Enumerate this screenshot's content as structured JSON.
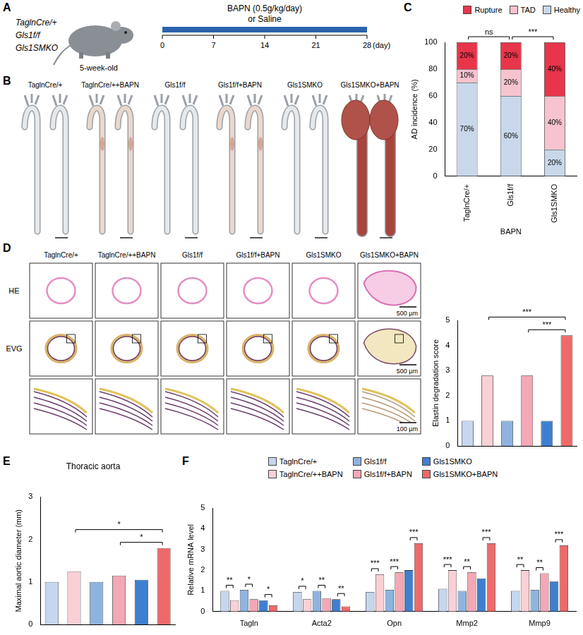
{
  "panel_letters": [
    "A",
    "B",
    "C",
    "D",
    "E",
    "F"
  ],
  "panel_a": {
    "genotypes": [
      "TaglnCre/+",
      "Gls1f/f",
      "Gls1SMKO"
    ],
    "age": "5-week-old",
    "treatment": [
      "BAPN (0.5g/kg/day)",
      "or Saline"
    ],
    "days": [
      0,
      7,
      14,
      21,
      28
    ],
    "unit": "(day)"
  },
  "panel_b": {
    "groups": [
      "TaglnCre/+",
      "TaglnCre/++BAPN",
      "Gls1f/f",
      "Gls1f/f+BAPN",
      "Gls1SMKO",
      "Gls1SMKO+BAPN"
    ]
  },
  "panel_d_images": {
    "groups": [
      "TaglnCre/+",
      "TaglnCre/++BAPN",
      "Gls1f/f",
      "Gls1f/f+BAPN",
      "Gls1SMKO",
      "Gls1SMKO+BAPN"
    ],
    "rows": [
      "HE",
      "EVG"
    ],
    "scale_bars": [
      "500 µm",
      "500 µm",
      "100 µm"
    ]
  },
  "chart_data": [
    {
      "type": "bar",
      "stacked": true,
      "data_labels": true,
      "legend": "top",
      "grid": false,
      "categories": [
        "TaglnCre/+",
        "Gls1f/f",
        "Gls1SMKO"
      ],
      "xlabel": "BAPN",
      "ylabel": "AD incidence (%)",
      "ylim": [
        0,
        100
      ],
      "yticks": [
        0,
        20,
        40,
        60,
        80,
        100
      ],
      "series": [
        {
          "name": "Healthy",
          "color": "#c8d8ea",
          "values": [
            70,
            60,
            20
          ],
          "value_labels": [
            "70%",
            "60%",
            "20%"
          ]
        },
        {
          "name": "TAD",
          "color": "#f6c3cf",
          "values": [
            10,
            20,
            40
          ],
          "value_labels": [
            "10%",
            "20%",
            "40%"
          ]
        },
        {
          "name": "Rupture",
          "color": "#e8354a",
          "values": [
            20,
            20,
            40
          ],
          "value_labels": [
            "20%",
            "20%",
            "40%"
          ]
        }
      ],
      "annotations": [
        {
          "from": "TaglnCre/+",
          "to": "Gls1f/f",
          "text": "ns"
        },
        {
          "from": "Gls1f/f",
          "to": "Gls1SMKO",
          "text": "***"
        }
      ]
    },
    {
      "type": "bar",
      "tick_labels": "y",
      "grid": false,
      "categories": [
        "TaglnCre/+",
        "TaglnCre/++BAPN",
        "Gls1f/f",
        "Gls1f/f+BAPN",
        "Gls1SMKO",
        "Gls1SMKO+BAPN"
      ],
      "values": [
        1.0,
        2.8,
        1.0,
        2.8,
        1.0,
        4.4
      ],
      "colors": [
        "#c5d6ee",
        "#f9d0d6",
        "#8fb3e0",
        "#f4a7b5",
        "#3f7fcf",
        "#ee6a6a"
      ],
      "ylabel": "Elastin degradation score",
      "ylim": [
        0,
        5
      ],
      "yticks": [
        0,
        1,
        2,
        3,
        4,
        5
      ],
      "annotations": [
        {
          "from": "Gls1f/f+BAPN",
          "to": "Gls1SMKO+BAPN",
          "text": "***"
        },
        {
          "from": "TaglnCre/++BAPN",
          "to": "Gls1SMKO+BAPN",
          "text": "***"
        }
      ]
    },
    {
      "type": "bar",
      "title": "Thoracic aorta",
      "tick_labels": "y",
      "grid": false,
      "categories": [
        "TaglnCre/+",
        "TaglnCre/++BAPN",
        "Gls1f/f",
        "Gls1f/f+BAPN",
        "Gls1SMKO",
        "Gls1SMKO+BAPN"
      ],
      "values": [
        1.0,
        1.25,
        1.0,
        1.15,
        1.05,
        1.8
      ],
      "colors": [
        "#c5d6ee",
        "#f9d0d6",
        "#8fb3e0",
        "#f4a7b5",
        "#3f7fcf",
        "#ee6a6a"
      ],
      "ylabel": "Maximal aortic diameter (mm)",
      "ylim": [
        0,
        3
      ],
      "yticks": [
        0,
        1,
        2,
        3
      ],
      "annotations": [
        {
          "from": "Gls1f/f+BAPN",
          "to": "Gls1SMKO+BAPN",
          "text": "*"
        },
        {
          "from": "TaglnCre/++BAPN",
          "to": "Gls1SMKO+BAPN",
          "text": "*"
        }
      ]
    },
    {
      "type": "bar",
      "legend": "top",
      "grid": false,
      "categories": [
        "Tagln",
        "Acta2",
        "Opn",
        "Mmp2",
        "Mmp9"
      ],
      "ylabel": "Relative mRNA level",
      "ylim": [
        0,
        5
      ],
      "yticks": [
        0,
        1,
        2,
        3,
        4,
        5
      ],
      "series": [
        {
          "name": "TaglnCre/+",
          "color": "#c5d6ee",
          "values": [
            1.0,
            0.95,
            0.95,
            1.1,
            1.0
          ]
        },
        {
          "name": "TaglnCre/++BAPN",
          "color": "#f9d0d6",
          "values": [
            0.55,
            0.6,
            1.8,
            2.0,
            2.0
          ]
        },
        {
          "name": "Gls1f/f",
          "color": "#8fb3e0",
          "values": [
            1.05,
            1.0,
            1.05,
            1.0,
            1.05
          ]
        },
        {
          "name": "Gls1f/f+BAPN",
          "color": "#f4a7b5",
          "values": [
            0.6,
            0.65,
            1.9,
            1.9,
            1.85
          ]
        },
        {
          "name": "Gls1SMKO",
          "color": "#3f7fcf",
          "values": [
            0.55,
            0.6,
            2.0,
            1.6,
            1.45
          ]
        },
        {
          "name": "Gls1SMKO+BAPN",
          "color": "#ee6a6a",
          "values": [
            0.3,
            0.25,
            3.3,
            3.3,
            3.2
          ]
        }
      ],
      "annotations": [
        {
          "category": "Tagln",
          "from": "TaglnCre/+",
          "to": "TaglnCre/++BAPN",
          "text": "**"
        },
        {
          "category": "Tagln",
          "from": "Gls1f/f",
          "to": "Gls1f/f+BAPN",
          "text": "*"
        },
        {
          "category": "Tagln",
          "from": "Gls1SMKO",
          "to": "Gls1SMKO+BAPN",
          "text": "*"
        },
        {
          "category": "Acta2",
          "from": "TaglnCre/+",
          "to": "TaglnCre/++BAPN",
          "text": "*"
        },
        {
          "category": "Acta2",
          "from": "Gls1f/f",
          "to": "Gls1f/f+BAPN",
          "text": "**"
        },
        {
          "category": "Acta2",
          "from": "Gls1SMKO",
          "to": "Gls1SMKO+BAPN",
          "text": "**"
        },
        {
          "category": "Opn",
          "from": "TaglnCre/+",
          "to": "TaglnCre/++BAPN",
          "text": "***"
        },
        {
          "category": "Opn",
          "from": "Gls1f/f",
          "to": "Gls1f/f+BAPN",
          "text": "***"
        },
        {
          "category": "Opn",
          "from": "Gls1SMKO",
          "to": "Gls1SMKO+BAPN",
          "text": "***"
        },
        {
          "category": "Mmp2",
          "from": "TaglnCre/+",
          "to": "TaglnCre/++BAPN",
          "text": "***"
        },
        {
          "category": "Mmp2",
          "from": "Gls1f/f",
          "to": "Gls1f/f+BAPN",
          "text": "**"
        },
        {
          "category": "Mmp2",
          "from": "Gls1SMKO",
          "to": "Gls1SMKO+BAPN",
          "text": "***"
        },
        {
          "category": "Mmp9",
          "from": "TaglnCre/+",
          "to": "TaglnCre/++BAPN",
          "text": "**"
        },
        {
          "category": "Mmp9",
          "from": "Gls1f/f",
          "to": "Gls1f/f+BAPN",
          "text": "**"
        },
        {
          "category": "Mmp9",
          "from": "Gls1SMKO",
          "to": "Gls1SMKO+BAPN",
          "text": "***"
        }
      ]
    }
  ]
}
